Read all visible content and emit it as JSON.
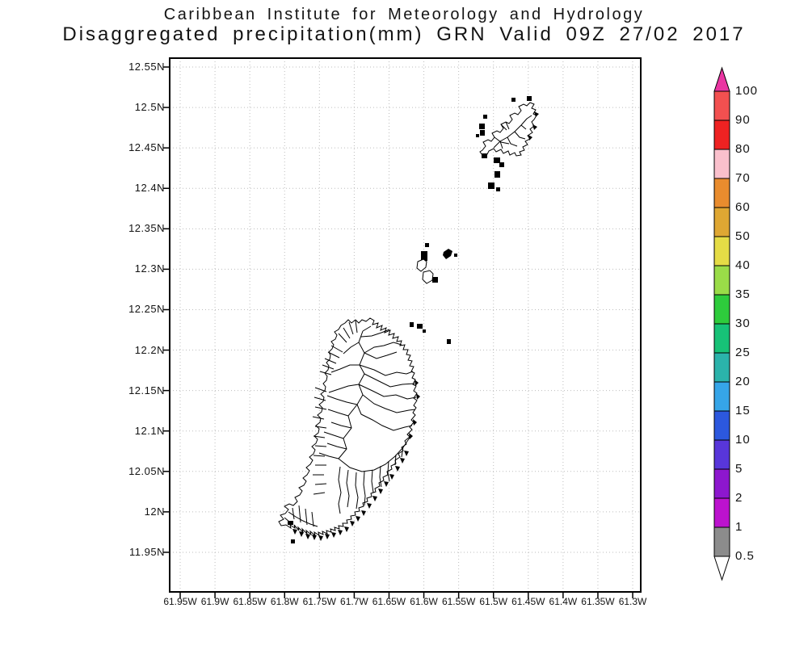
{
  "title": {
    "line1": "Caribbean Institute for Meteorology and Hydrology",
    "line2": "Disaggregated precipitation(mm) GRN Valid 09Z 27/02 2017"
  },
  "map": {
    "x_axis": {
      "ticks": [
        "61.95W",
        "61.9W",
        "61.85W",
        "61.8W",
        "61.75W",
        "61.7W",
        "61.65W",
        "61.6W",
        "61.55W",
        "61.5W",
        "61.45W",
        "61.4W",
        "61.35W",
        "61.3W"
      ]
    },
    "y_axis": {
      "ticks": [
        "12.55N",
        "12.5N",
        "12.45N",
        "12.4N",
        "12.35N",
        "12.3N",
        "12.25N",
        "12.2N",
        "12.15N",
        "12.1N",
        "12.05N",
        "12N",
        "11.95N"
      ]
    }
  },
  "colorbar": {
    "labels": [
      "100",
      "90",
      "80",
      "70",
      "60",
      "50",
      "40",
      "35",
      "30",
      "25",
      "20",
      "15",
      "10",
      "5",
      "2",
      "1",
      "0.5"
    ],
    "segment_colors": [
      "#F25050",
      "#EE2222",
      "#FAC0CC",
      "#E98C2E",
      "#DFA733",
      "#E5DC46",
      "#9ADC48",
      "#2ECC3C",
      "#17C277",
      "#2BB3AB",
      "#36A5E8",
      "#2C58DE",
      "#5836DA",
      "#8D17CE",
      "#BC12CE",
      "#8C8C8C"
    ],
    "overflow_top_color": "#EA35A2",
    "underflow_bottom_color": "#FFFFFF"
  },
  "chart_data": {
    "type": "map",
    "title": "Caribbean Institute for Meteorology and Hydrology",
    "subtitle": "Disaggregated precipitation(mm) GRN Valid 09Z 27/02 2017",
    "variable": "Disaggregated precipitation (mm)",
    "region_code": "GRN",
    "valid_time": "09Z 27/02 2017",
    "lon_range": [
      "61.95W",
      "61.3W"
    ],
    "lat_range": [
      "11.95N",
      "12.55N"
    ],
    "lon_ticks": [
      "61.95W",
      "61.9W",
      "61.85W",
      "61.8W",
      "61.75W",
      "61.7W",
      "61.65W",
      "61.6W",
      "61.55W",
      "61.5W",
      "61.45W",
      "61.4W",
      "61.35W",
      "61.3W"
    ],
    "lat_ticks": [
      "12.55N",
      "12.5N",
      "12.45N",
      "12.4N",
      "12.35N",
      "12.3N",
      "12.25N",
      "12.2N",
      "12.15N",
      "12.1N",
      "12.05N",
      "12N",
      "11.95N"
    ],
    "colorbar_levels_mm": [
      0.5,
      1,
      2,
      5,
      10,
      15,
      20,
      25,
      30,
      35,
      40,
      50,
      60,
      70,
      80,
      90,
      100
    ],
    "grid": "dotted",
    "shaded_precipitation": "none visible (map shows watershed outlines only, all values below lowest contour)"
  }
}
